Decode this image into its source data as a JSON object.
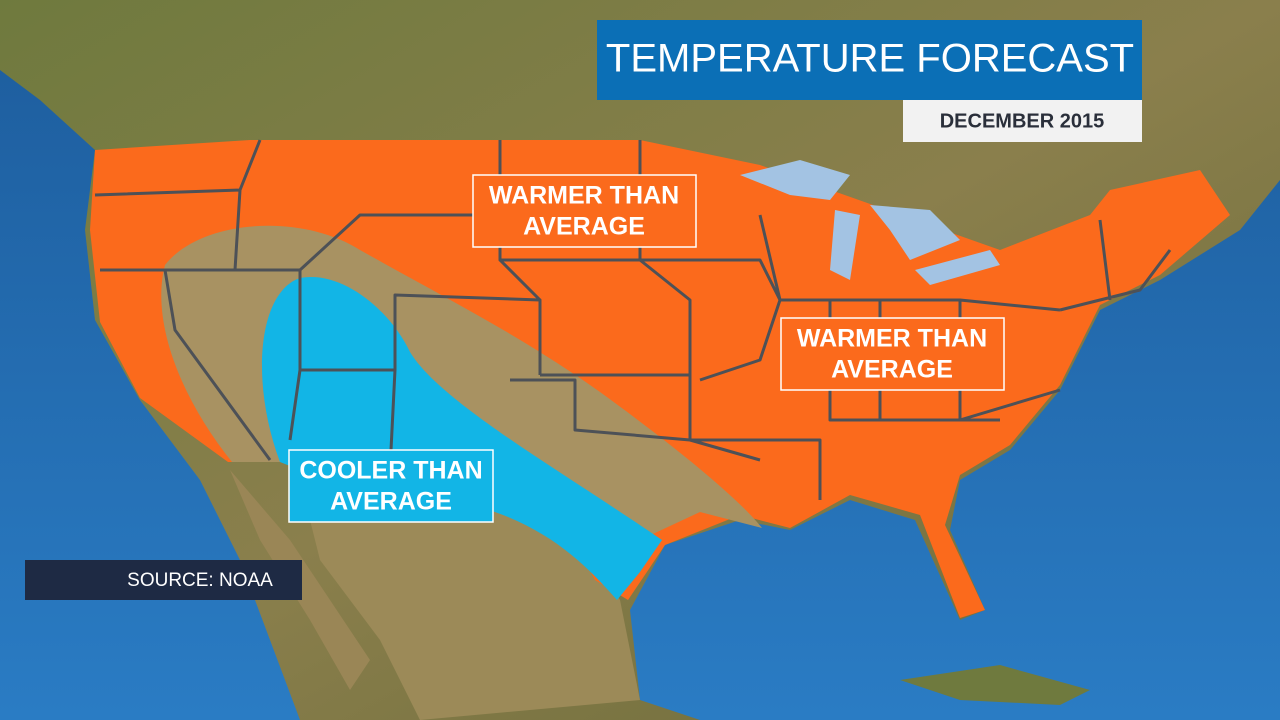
{
  "header": {
    "title": "TEMPERATURE FORECAST",
    "subtitle": "DECEMBER 2015"
  },
  "regions": [
    {
      "label_lines": [
        "WARMER THAN",
        "AVERAGE"
      ]
    },
    {
      "label_lines": [
        "WARMER THAN",
        "AVERAGE"
      ]
    },
    {
      "label_lines": [
        "COOLER THAN",
        "AVERAGE"
      ]
    }
  ],
  "source": "SOURCE: NOAA"
}
